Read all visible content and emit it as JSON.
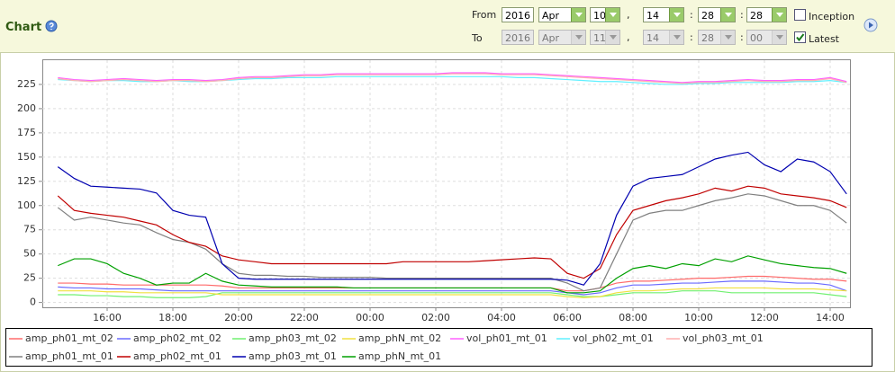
{
  "panel": {
    "title": "Chart",
    "from": {
      "label": "From",
      "year": "2016",
      "month": "Apr",
      "day": "10",
      "hour": "14",
      "minute": "28",
      "second": "28",
      "checkbox": "Inception",
      "checked": false
    },
    "to": {
      "label": "To",
      "year": "2016",
      "month": "Apr",
      "day": "11",
      "hour": "14",
      "minute": "28",
      "second": "00",
      "checkbox": "Latest",
      "checked": true
    },
    "date_separator": ",",
    "time_separator": ":"
  },
  "chart_data": {
    "type": "line",
    "grid": true,
    "categories": [
      null,
      null,
      null,
      "16:00",
      null,
      null,
      null,
      "18:00",
      null,
      null,
      null,
      "20:00",
      null,
      null,
      null,
      "22:00",
      null,
      null,
      null,
      "00:00",
      null,
      null,
      null,
      "02:00",
      null,
      null,
      null,
      "04:00",
      null,
      null,
      null,
      "06:00",
      null,
      null,
      null,
      "08:00",
      null,
      null,
      null,
      "10:00",
      null,
      null,
      null,
      "12:00",
      null,
      null,
      null,
      "14:00",
      null
    ],
    "ylim": [
      -5,
      250
    ],
    "yticks": [
      0,
      25,
      50,
      75,
      100,
      125,
      150,
      175,
      200,
      225
    ],
    "series": [
      {
        "name": "amp_ph01_mt_02",
        "color": "#ff6a6a",
        "values": [
          20,
          20,
          19,
          19,
          18,
          18,
          18,
          18,
          18,
          18,
          17,
          15,
          15,
          15,
          15,
          15,
          15,
          15,
          15,
          15,
          15,
          15,
          15,
          15,
          15,
          15,
          15,
          15,
          15,
          15,
          15,
          12,
          12,
          15,
          20,
          22,
          22,
          23,
          24,
          25,
          25,
          26,
          27,
          27,
          26,
          25,
          24,
          24,
          22
        ]
      },
      {
        "name": "amp_ph02_mt_02",
        "color": "#6a6aff",
        "values": [
          16,
          15,
          15,
          14,
          14,
          14,
          13,
          12,
          12,
          12,
          12,
          12,
          12,
          12,
          12,
          12,
          12,
          12,
          12,
          12,
          12,
          12,
          12,
          12,
          12,
          12,
          12,
          12,
          12,
          12,
          12,
          10,
          8,
          10,
          15,
          18,
          18,
          19,
          20,
          20,
          21,
          22,
          22,
          22,
          21,
          20,
          20,
          18,
          12
        ]
      },
      {
        "name": "amp_ph03_mt_02",
        "color": "#70f070",
        "values": [
          8,
          8,
          7,
          7,
          6,
          6,
          5,
          5,
          5,
          6,
          10,
          10,
          10,
          10,
          10,
          10,
          10,
          10,
          10,
          10,
          10,
          10,
          10,
          10,
          10,
          10,
          10,
          10,
          10,
          10,
          10,
          8,
          6,
          6,
          8,
          10,
          10,
          10,
          12,
          12,
          12,
          10,
          10,
          10,
          10,
          10,
          10,
          8,
          6
        ]
      },
      {
        "name": "amp_phN_mt_02",
        "color": "#f0e040",
        "values": [
          12,
          12,
          12,
          11,
          11,
          10,
          10,
          10,
          10,
          10,
          8,
          8,
          8,
          8,
          8,
          8,
          8,
          8,
          8,
          8,
          8,
          8,
          8,
          8,
          8,
          8,
          8,
          8,
          8,
          8,
          8,
          6,
          5,
          6,
          10,
          12,
          12,
          13,
          14,
          14,
          15,
          15,
          15,
          15,
          14,
          14,
          14,
          13,
          12
        ]
      },
      {
        "name": "vol_ph01_mt_01",
        "color": "#ff60ff",
        "values": [
          232,
          230,
          229,
          230,
          231,
          230,
          229,
          230,
          230,
          229,
          230,
          232,
          233,
          233,
          234,
          235,
          235,
          236,
          236,
          236,
          236,
          236,
          236,
          236,
          237,
          237,
          237,
          236,
          236,
          236,
          235,
          234,
          233,
          232,
          231,
          230,
          229,
          228,
          227,
          228,
          228,
          229,
          230,
          229,
          229,
          230,
          230,
          232,
          228
        ]
      },
      {
        "name": "vol_ph02_mt_01",
        "color": "#60f0ff",
        "values": [
          230,
          229,
          228,
          229,
          229,
          228,
          228,
          229,
          228,
          228,
          229,
          230,
          231,
          231,
          232,
          232,
          232,
          233,
          233,
          233,
          233,
          233,
          233,
          233,
          233,
          233,
          233,
          233,
          232,
          232,
          231,
          230,
          229,
          228,
          228,
          227,
          226,
          225,
          225,
          226,
          226,
          227,
          227,
          227,
          227,
          228,
          228,
          229,
          227
        ]
      },
      {
        "name": "vol_ph03_mt_01",
        "color": "#ffb0b0",
        "values": [
          231,
          229,
          228,
          229,
          230,
          229,
          228,
          229,
          229,
          228,
          229,
          231,
          232,
          232,
          233,
          234,
          234,
          235,
          235,
          235,
          235,
          235,
          235,
          235,
          236,
          236,
          236,
          235,
          235,
          235,
          234,
          233,
          232,
          231,
          230,
          229,
          228,
          227,
          226,
          227,
          227,
          228,
          229,
          228,
          228,
          229,
          229,
          231,
          227
        ]
      },
      {
        "name": "amp_ph01_mt_01",
        "color": "#808080",
        "values": [
          98,
          85,
          88,
          85,
          82,
          80,
          72,
          65,
          62,
          55,
          40,
          30,
          28,
          28,
          27,
          27,
          26,
          26,
          26,
          26,
          25,
          25,
          25,
          25,
          25,
          25,
          25,
          25,
          25,
          25,
          25,
          20,
          12,
          15,
          50,
          85,
          92,
          95,
          95,
          100,
          105,
          108,
          112,
          110,
          105,
          100,
          100,
          95,
          82
        ]
      },
      {
        "name": "amp_ph02_mt_01",
        "color": "#c00000",
        "values": [
          110,
          95,
          92,
          90,
          88,
          84,
          80,
          70,
          62,
          58,
          48,
          44,
          42,
          40,
          40,
          40,
          40,
          40,
          40,
          40,
          40,
          42,
          42,
          42,
          42,
          42,
          43,
          44,
          45,
          46,
          45,
          30,
          25,
          35,
          70,
          95,
          100,
          105,
          108,
          112,
          118,
          115,
          120,
          118,
          112,
          110,
          108,
          105,
          98
        ]
      },
      {
        "name": "amp_ph03_mt_01",
        "color": "#0000b0",
        "values": [
          140,
          128,
          120,
          119,
          118,
          117,
          113,
          95,
          90,
          88,
          40,
          25,
          24,
          24,
          24,
          24,
          24,
          24,
          24,
          24,
          24,
          24,
          24,
          24,
          24,
          24,
          24,
          24,
          24,
          24,
          24,
          23,
          18,
          40,
          90,
          120,
          128,
          130,
          132,
          140,
          148,
          152,
          155,
          142,
          135,
          148,
          145,
          135,
          112
        ]
      },
      {
        "name": "amp_phN_mt_01",
        "color": "#00a000",
        "values": [
          38,
          45,
          45,
          40,
          30,
          25,
          18,
          20,
          20,
          30,
          22,
          18,
          17,
          16,
          16,
          16,
          16,
          16,
          15,
          15,
          15,
          15,
          15,
          15,
          15,
          15,
          15,
          15,
          15,
          15,
          15,
          10,
          10,
          12,
          25,
          35,
          38,
          35,
          40,
          38,
          45,
          42,
          48,
          44,
          40,
          38,
          36,
          35,
          30
        ]
      }
    ]
  }
}
